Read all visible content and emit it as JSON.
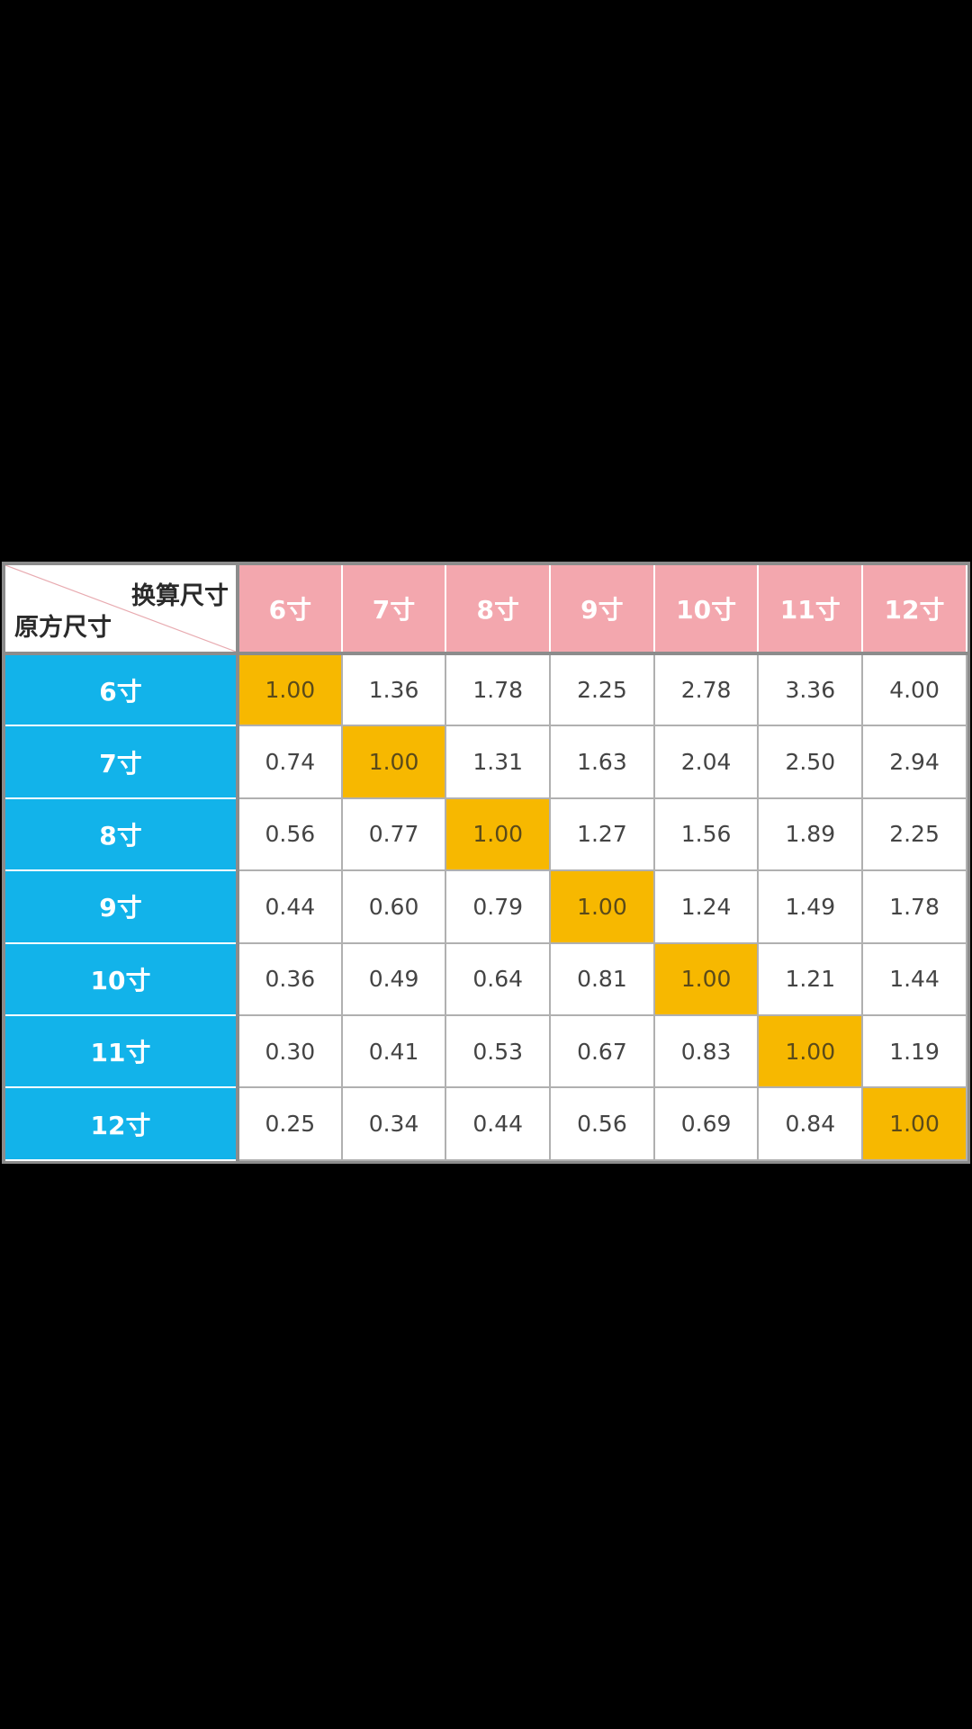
{
  "table": {
    "corner_top": "换算尺寸",
    "corner_bottom": "原方尺寸",
    "col_headers": [
      "6寸",
      "7寸",
      "8寸",
      "9寸",
      "10寸",
      "11寸",
      "12寸"
    ],
    "row_headers": [
      "6寸",
      "7寸",
      "8寸",
      "9寸",
      "10寸",
      "11寸",
      "12寸"
    ],
    "rows": [
      [
        "1.00",
        "1.36",
        "1.78",
        "2.25",
        "2.78",
        "3.36",
        "4.00"
      ],
      [
        "0.74",
        "1.00",
        "1.31",
        "1.63",
        "2.04",
        "2.50",
        "2.94"
      ],
      [
        "0.56",
        "0.77",
        "1.00",
        "1.27",
        "1.56",
        "1.89",
        "2.25"
      ],
      [
        "0.44",
        "0.60",
        "0.79",
        "1.00",
        "1.24",
        "1.49",
        "1.78"
      ],
      [
        "0.36",
        "0.49",
        "0.64",
        "0.81",
        "1.00",
        "1.21",
        "1.44"
      ],
      [
        "0.30",
        "0.41",
        "0.53",
        "0.67",
        "0.83",
        "1.00",
        "1.19"
      ],
      [
        "0.25",
        "0.34",
        "0.44",
        "0.56",
        "0.69",
        "0.84",
        "1.00"
      ]
    ]
  },
  "colors": {
    "header_pink": "#f3a7ae",
    "row_blue": "#12b3ea",
    "diagonal_highlight": "#f7b800",
    "background": "#000000"
  }
}
